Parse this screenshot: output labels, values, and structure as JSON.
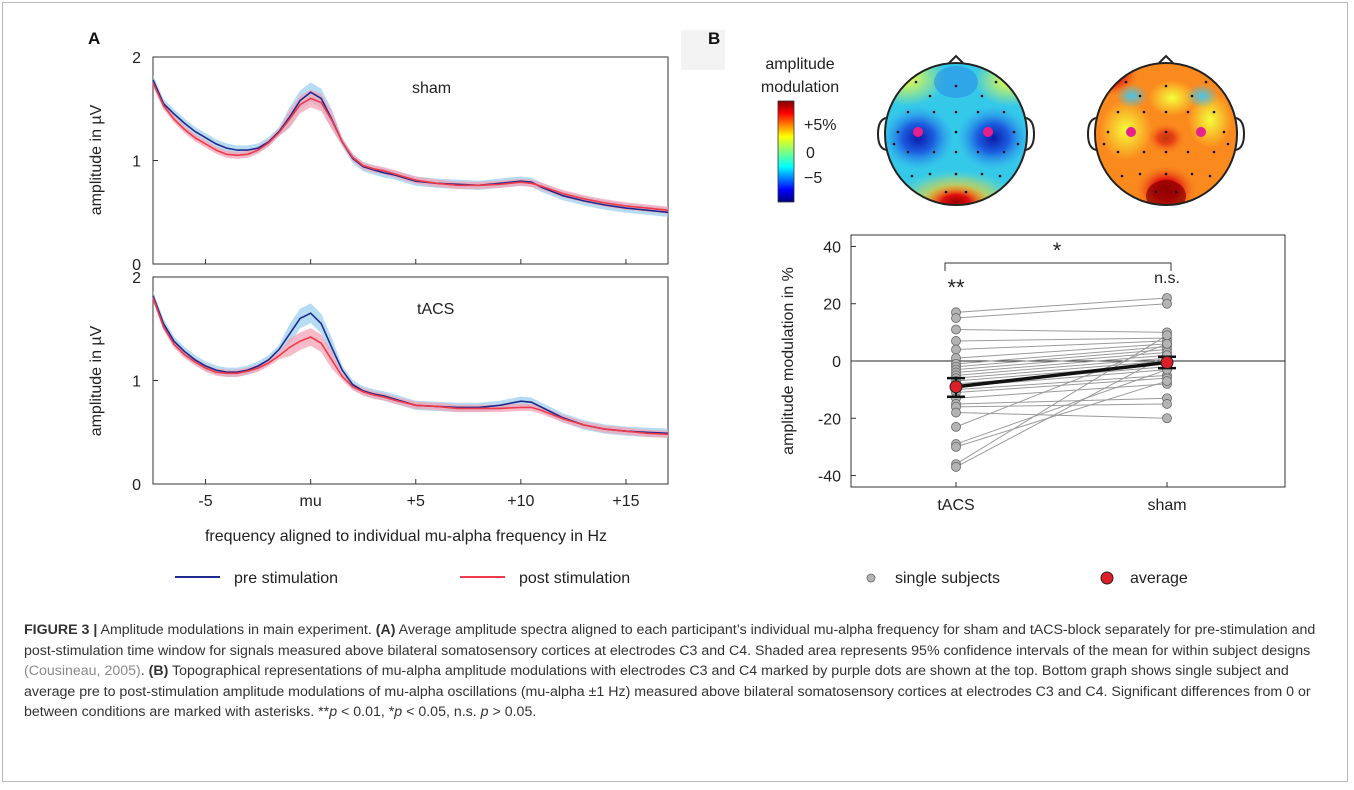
{
  "figure": {
    "panel_labels": {
      "a": "A",
      "b": "B"
    },
    "panel_a": {
      "ylabel": "amplitude in µV",
      "xlabel": "frequency aligned to individual mu-alpha frequency in Hz",
      "subplot_titles": [
        "sham",
        "tACS"
      ],
      "legend": {
        "pre": "pre stimulation",
        "post": "post stimulation"
      },
      "colors": {
        "pre": "#1f2a8c",
        "post": "#ee3a4a",
        "pre_ci": "#9ed0ef",
        "post_ci": "#f4a3b5"
      }
    },
    "panel_b": {
      "colorbar_title_line1": "amplitude",
      "colorbar_title_line2": "modulation",
      "colorbar_ticks": [
        "+5%",
        "0",
        "−5"
      ],
      "ylabel": "amplitude modulation in %",
      "bracket_label": "*",
      "tacs_significance": "**",
      "sham_significance": "n.s.",
      "legend": {
        "single": "single subjects",
        "average": "average"
      },
      "colors": {
        "subject_dot": "#b4b4b4",
        "average_dot": "#dd1f27",
        "electrode_marker": "#e8208c"
      }
    }
  },
  "caption": {
    "label": "FIGURE 3 |",
    "intro": "Amplitude modulations in main experiment.",
    "a_tag": "(A)",
    "a_text_1": "Average amplitude spectra aligned to each participant’s individual mu-alpha frequency for sham and tACS-block separately for pre-stimulation and post-stimulation time window for signals measured above bilateral somatosensory cortices at electrodes C3 and C4. Shaded area represents 95% confidence intervals of the mean for within subject designs",
    "a_cite": "(Cousineau, 2005)",
    "b_tag": "(B)",
    "b_text": "Topographical representations of mu-alpha amplitude modulations with electrodes C3 and C4 marked by purple dots are shown at the top. Bottom graph shows single subject and average pre to post-stimulation amplitude modulations of mu-alpha oscillations (mu-alpha ±1 Hz) measured above bilateral somatosensory cortices at electrodes C3 and C4. Significant differences from 0 or between conditions are marked with asterisks.",
    "stats_1": "**",
    "stats_p1": "p",
    "stats_2": " < 0.01, *",
    "stats_p2": "p",
    "stats_3": " < 0.05, n.s. ",
    "stats_p3": "p",
    "stats_4": " > 0.05."
  },
  "chart_data": [
    {
      "type": "line",
      "title": "sham",
      "xlabel": "frequency aligned to individual mu-alpha frequency in Hz",
      "ylabel": "amplitude in µV",
      "xlim": [
        -7.5,
        17
      ],
      "ylim": [
        0,
        2
      ],
      "x_tick_labels": [
        "-5",
        "mu",
        "+5",
        "+10",
        "+15"
      ],
      "x_tick_values": [
        -5,
        0,
        5,
        10,
        15
      ],
      "y_ticks": [
        0,
        1,
        2
      ],
      "x": [
        -7.5,
        -7,
        -6.5,
        -6,
        -5.5,
        -5,
        -4.5,
        -4,
        -3.5,
        -3,
        -2.5,
        -2,
        -1.5,
        -1,
        -0.5,
        0,
        0.5,
        1,
        1.5,
        2,
        2.5,
        3,
        3.5,
        4,
        5,
        6,
        7,
        8,
        9,
        10,
        10.5,
        11,
        12,
        13,
        14,
        15,
        16,
        17
      ],
      "series": [
        {
          "name": "pre stimulation",
          "values": [
            1.78,
            1.55,
            1.45,
            1.36,
            1.28,
            1.22,
            1.16,
            1.12,
            1.1,
            1.1,
            1.12,
            1.18,
            1.28,
            1.42,
            1.58,
            1.66,
            1.6,
            1.4,
            1.18,
            1.02,
            0.94,
            0.91,
            0.88,
            0.86,
            0.8,
            0.78,
            0.77,
            0.76,
            0.78,
            0.8,
            0.79,
            0.74,
            0.66,
            0.61,
            0.57,
            0.54,
            0.52,
            0.5
          ]
        },
        {
          "name": "post stimulation",
          "values": [
            1.75,
            1.53,
            1.4,
            1.3,
            1.22,
            1.16,
            1.1,
            1.06,
            1.05,
            1.06,
            1.1,
            1.17,
            1.27,
            1.4,
            1.54,
            1.6,
            1.56,
            1.39,
            1.18,
            1.03,
            0.95,
            0.92,
            0.9,
            0.87,
            0.81,
            0.78,
            0.76,
            0.76,
            0.77,
            0.79,
            0.78,
            0.75,
            0.68,
            0.63,
            0.59,
            0.56,
            0.54,
            0.52
          ]
        }
      ]
    },
    {
      "type": "line",
      "title": "tACS",
      "xlabel": "frequency aligned to individual mu-alpha frequency in Hz",
      "ylabel": "amplitude in µV",
      "xlim": [
        -7.5,
        17
      ],
      "ylim": [
        0,
        2
      ],
      "x_tick_labels": [
        "-5",
        "mu",
        "+5",
        "+10",
        "+15"
      ],
      "x_tick_values": [
        -5,
        0,
        5,
        10,
        15
      ],
      "y_ticks": [
        0,
        1,
        2
      ],
      "x": [
        -7.5,
        -7,
        -6.5,
        -6,
        -5.5,
        -5,
        -4.5,
        -4,
        -3.5,
        -3,
        -2.5,
        -2,
        -1.5,
        -1,
        -0.5,
        0,
        0.5,
        1,
        1.5,
        2,
        2.5,
        3,
        3.5,
        4,
        5,
        6,
        7,
        8,
        9,
        10,
        10.5,
        11,
        12,
        13,
        14,
        15,
        16,
        17
      ],
      "series": [
        {
          "name": "pre stimulation",
          "values": [
            1.82,
            1.55,
            1.38,
            1.28,
            1.2,
            1.14,
            1.1,
            1.08,
            1.08,
            1.1,
            1.14,
            1.2,
            1.3,
            1.45,
            1.6,
            1.65,
            1.55,
            1.32,
            1.1,
            0.96,
            0.9,
            0.87,
            0.85,
            0.82,
            0.76,
            0.75,
            0.74,
            0.74,
            0.76,
            0.8,
            0.79,
            0.74,
            0.64,
            0.57,
            0.53,
            0.51,
            0.5,
            0.49
          ]
        },
        {
          "name": "post stimulation",
          "values": [
            1.8,
            1.52,
            1.35,
            1.25,
            1.18,
            1.12,
            1.08,
            1.07,
            1.07,
            1.09,
            1.12,
            1.17,
            1.24,
            1.32,
            1.38,
            1.42,
            1.36,
            1.2,
            1.04,
            0.94,
            0.89,
            0.86,
            0.84,
            0.81,
            0.76,
            0.75,
            0.73,
            0.73,
            0.73,
            0.74,
            0.74,
            0.71,
            0.63,
            0.57,
            0.53,
            0.51,
            0.49,
            0.48
          ]
        }
      ]
    },
    {
      "type": "scatter",
      "ylabel": "amplitude modulation in %",
      "categories": [
        "tACS",
        "sham"
      ],
      "ylim": [
        -44,
        44
      ],
      "y_ticks": [
        -40,
        -20,
        0,
        20,
        40
      ],
      "single_subjects": {
        "tacs": [
          17,
          15,
          11,
          7,
          4,
          1,
          -1,
          -2,
          -3,
          -4,
          -5,
          -6,
          -7,
          -8,
          -9,
          -10,
          -11,
          -13,
          -15,
          -16,
          -18,
          -23,
          -29,
          -30,
          -36,
          -37
        ],
        "sham": [
          22,
          20,
          10,
          8,
          7,
          6,
          5,
          4,
          3,
          2,
          1,
          0,
          -1,
          -2,
          -3,
          -5,
          -6,
          -8,
          -13,
          -15,
          -20,
          6,
          -3,
          -7,
          9,
          2
        ]
      },
      "average": {
        "tacs": -9,
        "sham": -0.5
      },
      "error_bars": {
        "tacs": [
          -12.5,
          -6
        ],
        "sham": [
          -2.5,
          1.5
        ]
      }
    }
  ]
}
